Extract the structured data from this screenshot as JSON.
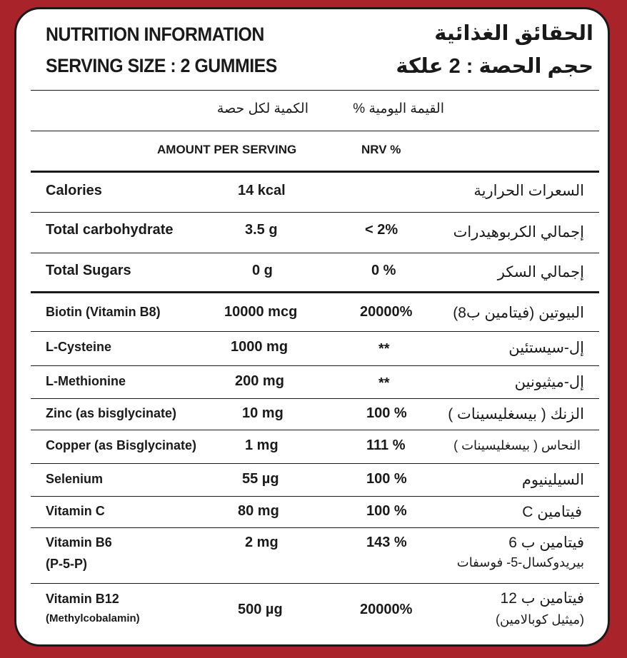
{
  "header": {
    "title_en": "NUTRITION INFORMATION",
    "serving_en": "SERVING SIZE : 2 GUMMIES",
    "title_ar": "الحقائق الغذائية",
    "serving_ar": "حجم الحصة : 2 علكة"
  },
  "columns": {
    "amount_ar": "الكمية لكل حصة",
    "nrv_ar": "القيمة اليومية %",
    "amount_en": "AMOUNT PER SERVING",
    "nrv_en": "NRV %"
  },
  "rows": [
    {
      "name": "Calories",
      "amount": "14 kcal",
      "nrv": "",
      "name_ar": "السعرات الحرارية"
    },
    {
      "name": "Total carbohydrate",
      "amount": "3.5 g",
      "nrv": "< 2%",
      "name_ar": "إجمالي الكربوهيدرات"
    },
    {
      "name": "Total Sugars",
      "amount": "0 g",
      "nrv": "0 %",
      "name_ar": "إجمالي السكر"
    },
    {
      "name": "Biotin (Vitamin B8)",
      "amount": "10000 mcg",
      "nrv": "20000%",
      "name_ar": "البيوتين (فيتامين ب8)"
    },
    {
      "name": "L-Cysteine",
      "amount": "1000 mg",
      "nrv": "**",
      "name_ar": "إل-سيستئين"
    },
    {
      "name": "L-Methionine",
      "amount": "200 mg",
      "nrv": "**",
      "name_ar": "إل-ميثيونين"
    },
    {
      "name": "Zinc (as bisglycinate)",
      "amount": "10 mg",
      "nrv": "100 %",
      "name_ar": "الزنك ( بيسغليسينات )"
    },
    {
      "name": "Copper (as Bisglycinate)",
      "amount": "1 mg",
      "nrv": "111 %",
      "name_ar": "النحاس ( بيسغليسينات )"
    },
    {
      "name": "Selenium",
      "amount": "55 µg",
      "nrv": "100 %",
      "name_ar": "السيلينيوم"
    },
    {
      "name": "Vitamin C",
      "amount": "80 mg",
      "nrv": "100 %",
      "name_ar": "فيتامين C"
    },
    {
      "name": "Vitamin B6",
      "name2": "(P-5-P)",
      "amount": "2 mg",
      "nrv": "143 %",
      "name_ar": "فيتامين ب 6",
      "name_ar2": "بيريدوكسال-5- فوسفات"
    },
    {
      "name": "Vitamin B12",
      "name2": "(Methylcobalamin)",
      "amount": "500 µg",
      "nrv": "20000%",
      "name_ar": "فيتامين ب 12",
      "name_ar2": "(ميثيل كوبالامين)"
    }
  ]
}
